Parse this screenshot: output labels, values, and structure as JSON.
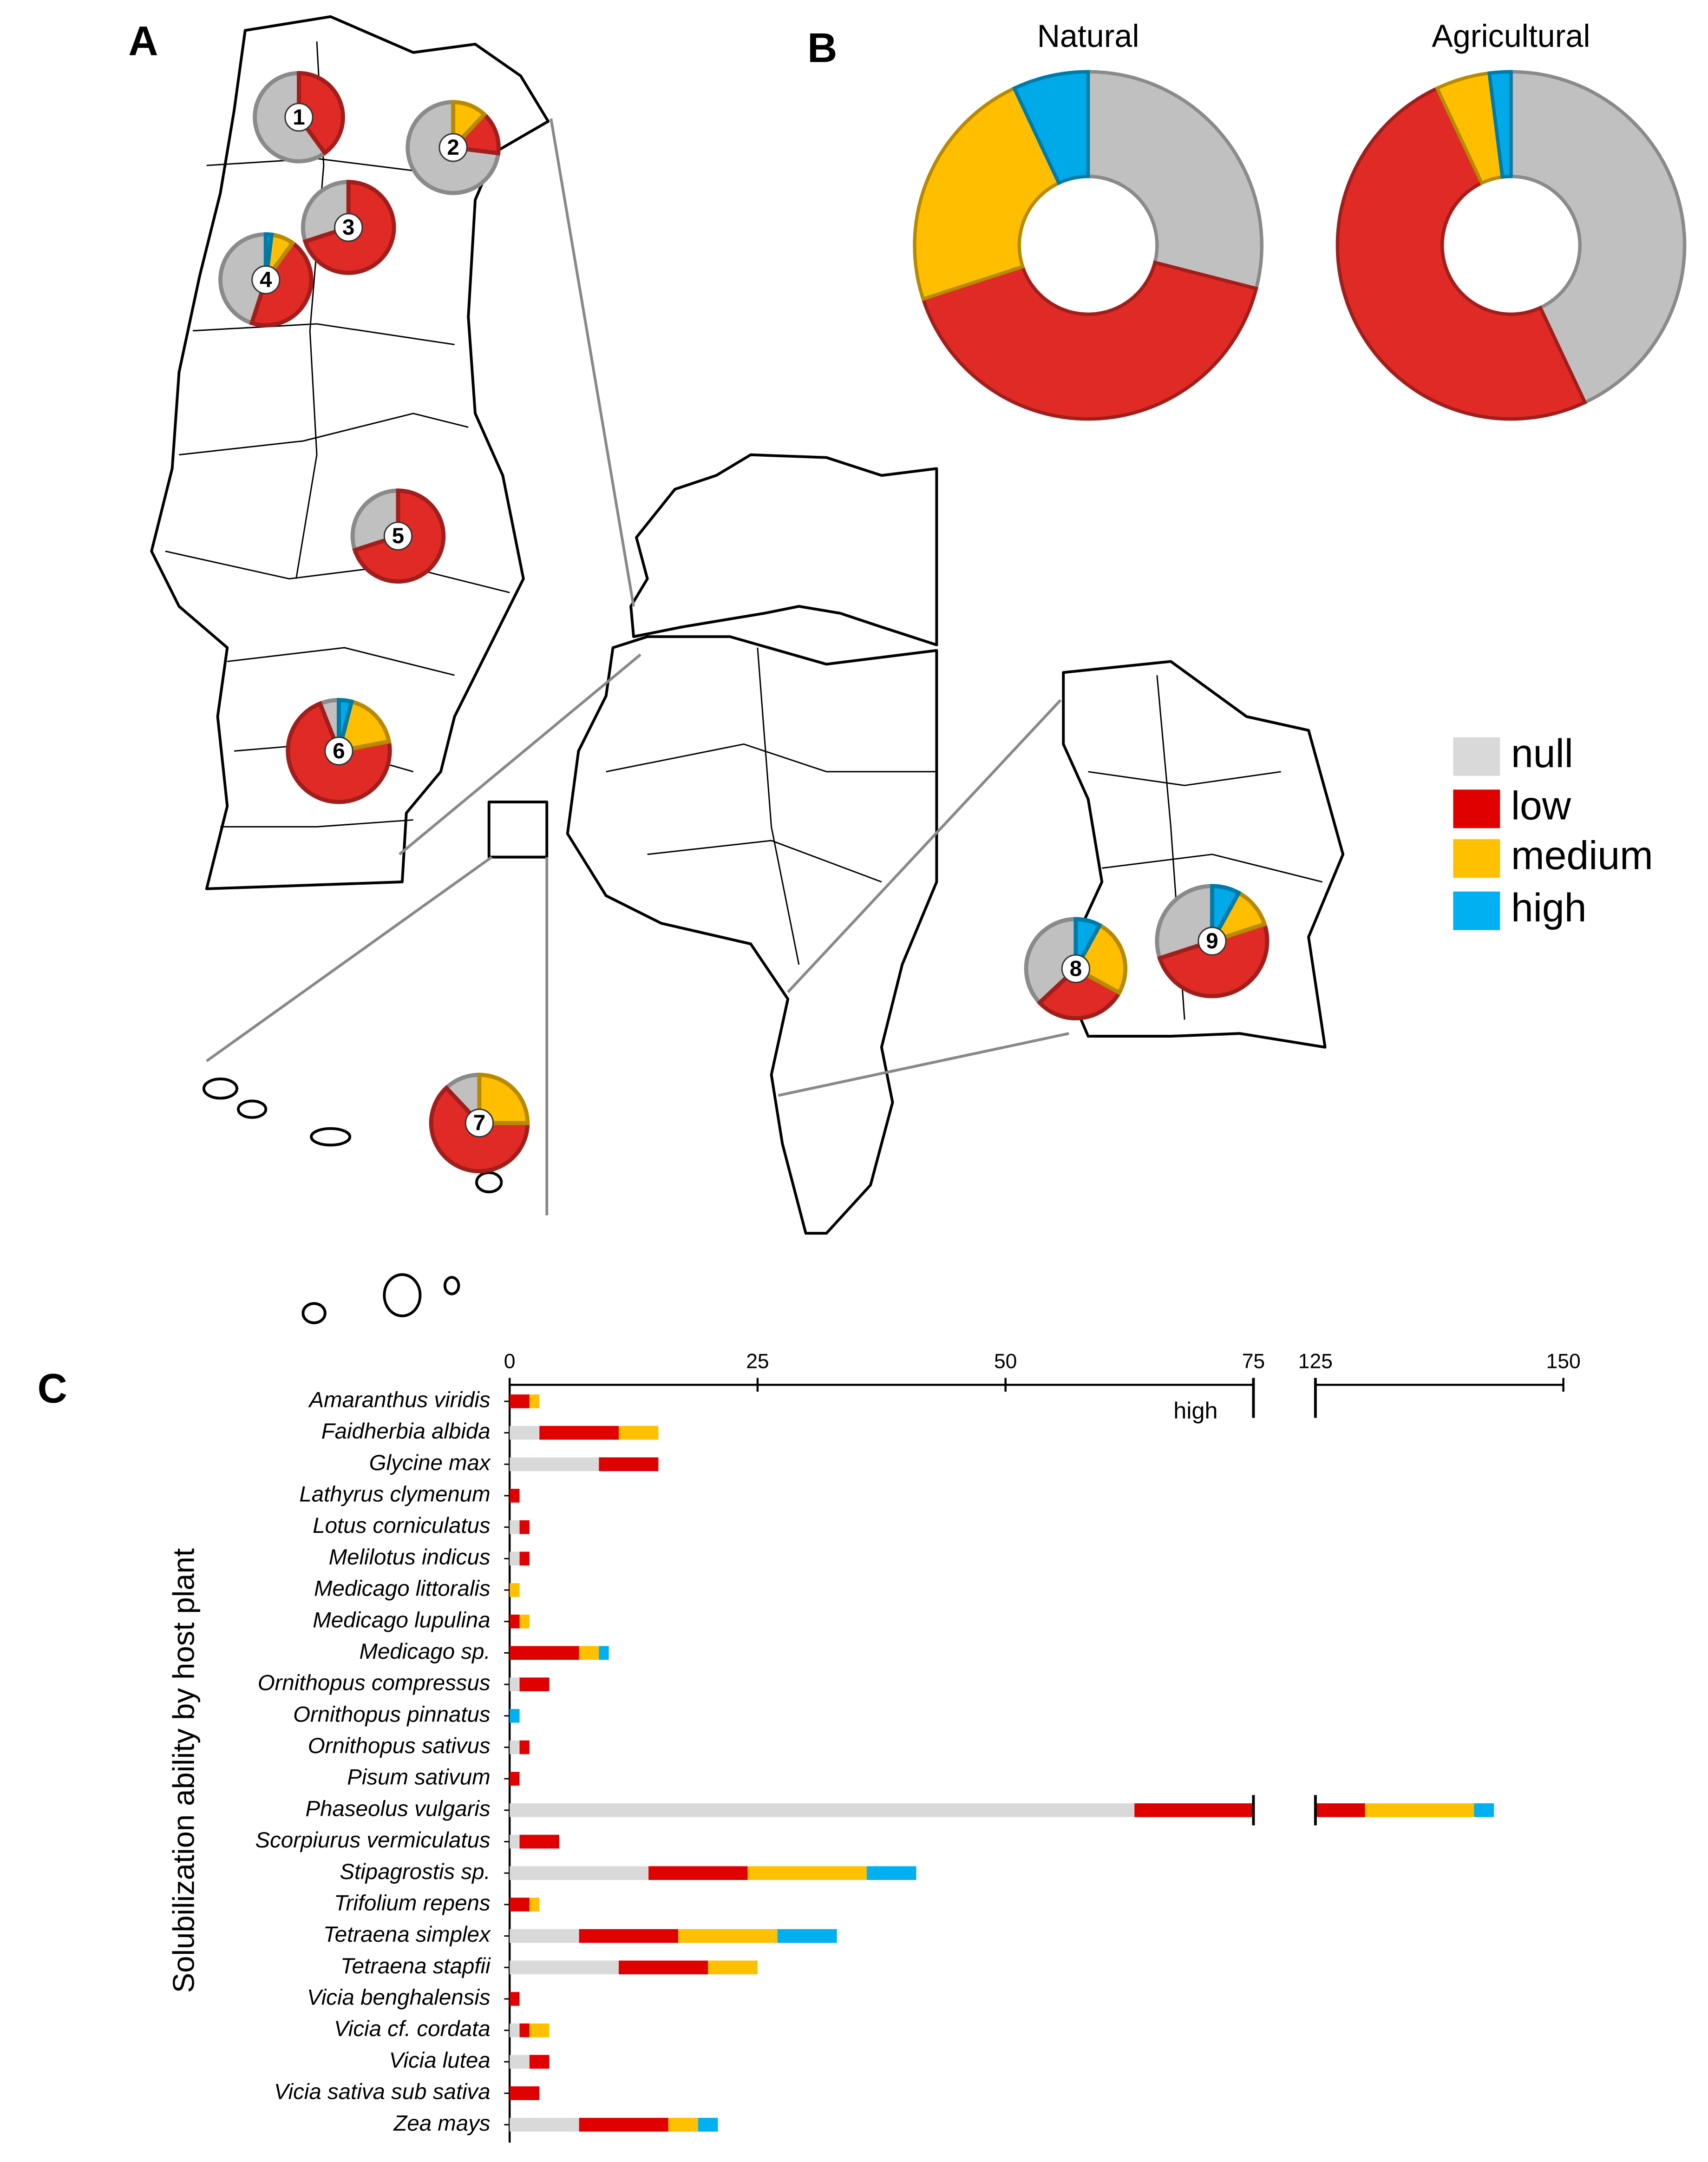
{
  "chart_data": [
    {
      "type": "map-pie",
      "panel_label": "A",
      "direction": "counterclockwise",
      "colors": [
        "#c0c0c0",
        "#e02a25",
        "#ffbf00",
        "#00a9e8"
      ],
      "sites": [
        {
          "label": "1",
          "values": [
            60,
            40,
            0,
            0
          ]
        },
        {
          "label": "2",
          "values": [
            73,
            15,
            12,
            0
          ]
        },
        {
          "label": "3",
          "values": [
            30,
            70,
            0,
            0
          ]
        },
        {
          "label": "4",
          "values": [
            45,
            45,
            8,
            2
          ]
        },
        {
          "label": "5",
          "values": [
            30,
            70,
            0,
            0
          ]
        },
        {
          "label": "6",
          "values": [
            6,
            72,
            18,
            4
          ]
        },
        {
          "label": "7",
          "values": [
            12,
            63,
            25,
            0
          ]
        },
        {
          "label": "8",
          "values": [
            37,
            30,
            25,
            8
          ]
        },
        {
          "label": "9",
          "values": [
            30,
            50,
            12,
            8
          ]
        }
      ]
    },
    {
      "type": "donut",
      "panel_label": "B",
      "direction": "clockwise",
      "colors": [
        "#c0c0c0",
        "#e02a25",
        "#ffbf00",
        "#00a9e8"
      ],
      "pies": [
        {
          "title": "Natural",
          "values": [
            29,
            41,
            23,
            7
          ]
        },
        {
          "title": "Agricultural",
          "values": [
            43,
            50,
            5,
            2
          ]
        }
      ]
    },
    {
      "type": "stacked-barh",
      "panel_label": "C",
      "ylabel": "Solubilization ability by host plant",
      "annotation": "high",
      "xlim": [
        0,
        150
      ],
      "xbreak": [
        75,
        125
      ],
      "xticks": [
        0,
        25,
        50,
        75,
        125,
        150
      ],
      "categories": [
        "Amaranthus viridis",
        "Faidherbia albida",
        "Glycine max",
        "Lathyrus clymenum",
        "Lotus corniculatus",
        "Melilotus indicus",
        "Medicago littoralis",
        "Medicago lupulina",
        "Medicago sp.",
        "Ornithopus compressus",
        "Ornithopus pinnatus",
        "Ornithopus sativus",
        "Pisum sativum",
        "Phaseolus vulgaris",
        "Scorpiurus vermiculatus",
        "Stipagrostis sp.",
        "Trifolium repens",
        "Tetraena simplex",
        "Tetraena stapfii",
        "Vicia benghalensis",
        "Vicia cf. cordata",
        "Vicia lutea",
        "Vicia sativa sub sativa",
        "Zea mays"
      ],
      "series": [
        {
          "name": "null",
          "color": "#d9d9d9",
          "values": [
            0,
            3,
            9,
            0,
            1,
            1,
            0,
            0,
            0,
            1,
            0,
            1,
            0,
            63,
            1,
            14,
            0,
            7,
            11,
            0,
            1,
            2,
            0,
            7
          ]
        },
        {
          "name": "low",
          "color": "#e00000",
          "values": [
            2,
            8,
            6,
            1,
            1,
            1,
            0,
            1,
            7,
            3,
            0,
            1,
            1,
            67,
            4,
            10,
            2,
            10,
            9,
            1,
            1,
            2,
            3,
            9
          ]
        },
        {
          "name": "medium",
          "color": "#ffc000",
          "values": [
            1,
            4,
            0,
            0,
            0,
            0,
            1,
            1,
            2,
            0,
            0,
            0,
            0,
            11,
            0,
            12,
            1,
            10,
            5,
            0,
            2,
            0,
            0,
            3
          ]
        },
        {
          "name": "high",
          "color": "#00b0f0",
          "values": [
            0,
            0,
            0,
            0,
            0,
            0,
            0,
            0,
            1,
            0,
            1,
            0,
            0,
            2,
            0,
            5,
            0,
            6,
            0,
            0,
            0,
            0,
            0,
            2
          ]
        }
      ]
    }
  ]
}
